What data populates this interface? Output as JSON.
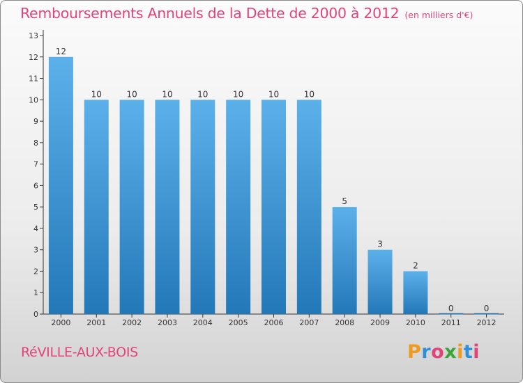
{
  "header": {
    "title": "Remboursements Annuels de la Dette de 2000 à 2012",
    "unit": "(en milliers d'€)"
  },
  "footer": {
    "place": "RéVILLE-AUX-BOIS",
    "logo": {
      "letters": [
        "P",
        "r",
        "o",
        "x",
        "i",
        "t",
        "i"
      ],
      "colors": [
        "#f09a1e",
        "#2f8fd8",
        "#e2447a",
        "#3aa635",
        "#f09a1e",
        "#2f8fd8",
        "#e2447a"
      ]
    }
  },
  "colors": {
    "bar_light": "#5cb0ea",
    "bar_dark": "#2378b8",
    "axis": "#333333",
    "text": "#333333",
    "grid": "#c8c8c8"
  },
  "chart_data": {
    "type": "bar",
    "title": "Remboursements Annuels de la Dette de 2000 à 2012",
    "subtitle": "(en milliers d'€)",
    "xlabel": "",
    "ylabel": "",
    "categories": [
      "2000",
      "2001",
      "2002",
      "2003",
      "2004",
      "2005",
      "2006",
      "2007",
      "2008",
      "2009",
      "2010",
      "2011",
      "2012"
    ],
    "values": [
      12,
      10,
      10,
      10,
      10,
      10,
      10,
      10,
      5,
      3,
      2,
      0,
      0
    ],
    "data_labels": [
      "12",
      "10",
      "10",
      "10",
      "10",
      "10",
      "10",
      "10",
      "5",
      "3",
      "2",
      "0",
      "0"
    ],
    "ylim": [
      0,
      13
    ],
    "yticks": [
      "0",
      "1",
      "2",
      "3",
      "4",
      "5",
      "6",
      "7",
      "8",
      "9",
      "10",
      "11",
      "12",
      "13"
    ],
    "grid": false,
    "legend": "none"
  }
}
